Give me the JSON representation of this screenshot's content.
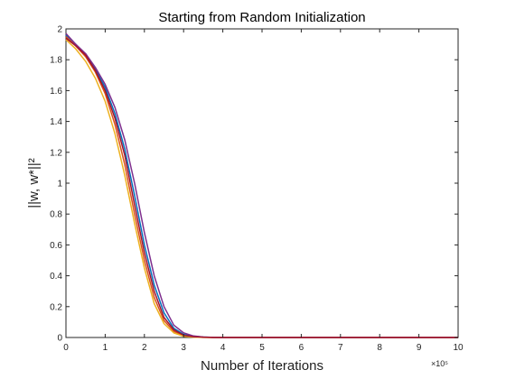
{
  "chart_data": {
    "type": "line",
    "title": "Starting from Random Initialization",
    "xlabel": "Number of Iterations",
    "ylabel": "||w, w*||²",
    "x_multiplier": "×10⁵",
    "xlim": [
      0,
      10
    ],
    "ylim": [
      0,
      2
    ],
    "x_ticks": [
      0,
      1,
      2,
      3,
      4,
      5,
      6,
      7,
      8,
      9,
      10
    ],
    "y_ticks": [
      0,
      0.2,
      0.4,
      0.6,
      0.8,
      1,
      1.2,
      1.4,
      1.6,
      1.8,
      2
    ],
    "grid": false,
    "legend": "none",
    "x": [
      0,
      0.25,
      0.5,
      0.75,
      1.0,
      1.25,
      1.5,
      1.75,
      2.0,
      2.25,
      2.5,
      2.75,
      3.0,
      3.25,
      3.5,
      3.75,
      4.0,
      5.0,
      6.0,
      7.0,
      8.0,
      9.0,
      10.0
    ],
    "series": [
      {
        "color": "#0072BD",
        "values": [
          1.96,
          1.9,
          1.83,
          1.74,
          1.62,
          1.45,
          1.22,
          0.92,
          0.6,
          0.34,
          0.16,
          0.06,
          0.02,
          0.008,
          0.003,
          0.001,
          0,
          0,
          0,
          0,
          0,
          0,
          0
        ]
      },
      {
        "color": "#D95319",
        "values": [
          1.95,
          1.89,
          1.82,
          1.72,
          1.58,
          1.38,
          1.12,
          0.8,
          0.5,
          0.26,
          0.11,
          0.04,
          0.012,
          0.004,
          0.001,
          0,
          0,
          0,
          0,
          0,
          0,
          0,
          0
        ]
      },
      {
        "color": "#EDB120",
        "values": [
          1.93,
          1.87,
          1.79,
          1.68,
          1.53,
          1.32,
          1.05,
          0.74,
          0.45,
          0.22,
          0.09,
          0.03,
          0.008,
          0.002,
          0.001,
          0,
          0,
          0,
          0,
          0,
          0,
          0,
          0
        ]
      },
      {
        "color": "#7E2F8E",
        "values": [
          1.97,
          1.9,
          1.84,
          1.75,
          1.64,
          1.49,
          1.28,
          1.0,
          0.68,
          0.4,
          0.2,
          0.08,
          0.03,
          0.01,
          0.003,
          0.001,
          0,
          0,
          0,
          0,
          0,
          0,
          0
        ]
      },
      {
        "color": "#A2142F",
        "values": [
          1.94,
          1.89,
          1.83,
          1.73,
          1.6,
          1.42,
          1.18,
          0.86,
          0.55,
          0.3,
          0.13,
          0.05,
          0.015,
          0.005,
          0.002,
          0,
          0,
          0,
          0,
          0,
          0,
          0,
          0
        ]
      }
    ]
  }
}
